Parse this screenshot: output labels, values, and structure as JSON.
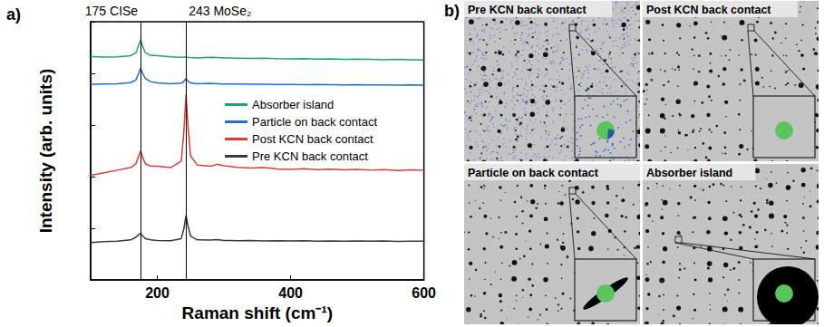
{
  "chart_data": {
    "type": "line",
    "title": "a)",
    "x_label": "Raman shift (cm⁻¹)",
    "y_label": "Intensity (arb. units)",
    "x": [
      100,
      120,
      140,
      160,
      168,
      172,
      175,
      178,
      182,
      190,
      200,
      220,
      236,
      240,
      243,
      246,
      250,
      260,
      280,
      290,
      300,
      320,
      340,
      360,
      380,
      400,
      420,
      440,
      460,
      480,
      500,
      520,
      540,
      560,
      580,
      600
    ],
    "xlim": [
      100,
      600
    ],
    "xticks": [
      200,
      400,
      600
    ],
    "ylim": [
      0,
      100
    ],
    "tick_labels": "x",
    "grid": false,
    "legend": "right",
    "annotations": [
      {
        "x": 175,
        "label": "175 CISe"
      },
      {
        "x": 243,
        "label": "243 MoSe₂"
      }
    ],
    "series": [
      {
        "name": "Absorber island",
        "color": "#22a55e",
        "values": [
          86.5,
          86.3,
          86.4,
          86.8,
          88,
          91,
          93,
          90.5,
          88,
          87,
          86.8,
          86.4,
          86.2,
          86.3,
          86.4,
          86.2,
          86.1,
          86,
          86.2,
          86.1,
          86,
          85.9,
          85.8,
          85.9,
          85.7,
          85.6,
          85.7,
          85.5,
          85.6,
          85.4,
          85.5,
          85.4,
          85.3,
          85.4,
          85.3,
          85.2
        ]
      },
      {
        "name": "Particle on back contact",
        "color": "#1e6fd0",
        "values": [
          75.8,
          75.9,
          76,
          76.4,
          77.5,
          80,
          82,
          80,
          78,
          76.8,
          76.3,
          76,
          76.2,
          77,
          78,
          77,
          76.3,
          76,
          76.1,
          76,
          75.9,
          75.9,
          75.8,
          75.8,
          75.7,
          75.7,
          75.6,
          75.7,
          75.6,
          75.5,
          75.6,
          75.5,
          75.5,
          75.4,
          75.5,
          75.4
        ]
      },
      {
        "name": "Post KCN back contact",
        "color": "#e53935",
        "values": [
          40.5,
          41.5,
          42.5,
          43.5,
          45,
          48,
          50,
          47.5,
          45,
          44,
          44,
          43.5,
          46,
          58,
          72,
          60,
          48,
          44.5,
          44,
          44.8,
          44.2,
          43.6,
          43.3,
          43.5,
          43,
          42.8,
          43.1,
          42.7,
          42.9,
          42.6,
          42.8,
          42.5,
          42.7,
          42.4,
          42.6,
          42.5
        ]
      },
      {
        "name": "Pre KCN back contact",
        "color": "#3a3a3a",
        "values": [
          14.5,
          14.8,
          15,
          15.5,
          16.5,
          17.5,
          18,
          17,
          16,
          15.5,
          15.3,
          15.2,
          16,
          20,
          25,
          21,
          17,
          15.5,
          15.4,
          15.6,
          15.3,
          15.2,
          15.3,
          15.1,
          15.2,
          15.1,
          15.2,
          15,
          15.1,
          15,
          15.1,
          15,
          15.1,
          14.9,
          15,
          15
        ]
      }
    ]
  },
  "panel_b": {
    "letter": "b)",
    "images": [
      {
        "title": "Pre KCN back contact"
      },
      {
        "title": "Post KCN back contact"
      },
      {
        "title": "Particle on back contact"
      },
      {
        "title": "Absorber island"
      }
    ]
  }
}
